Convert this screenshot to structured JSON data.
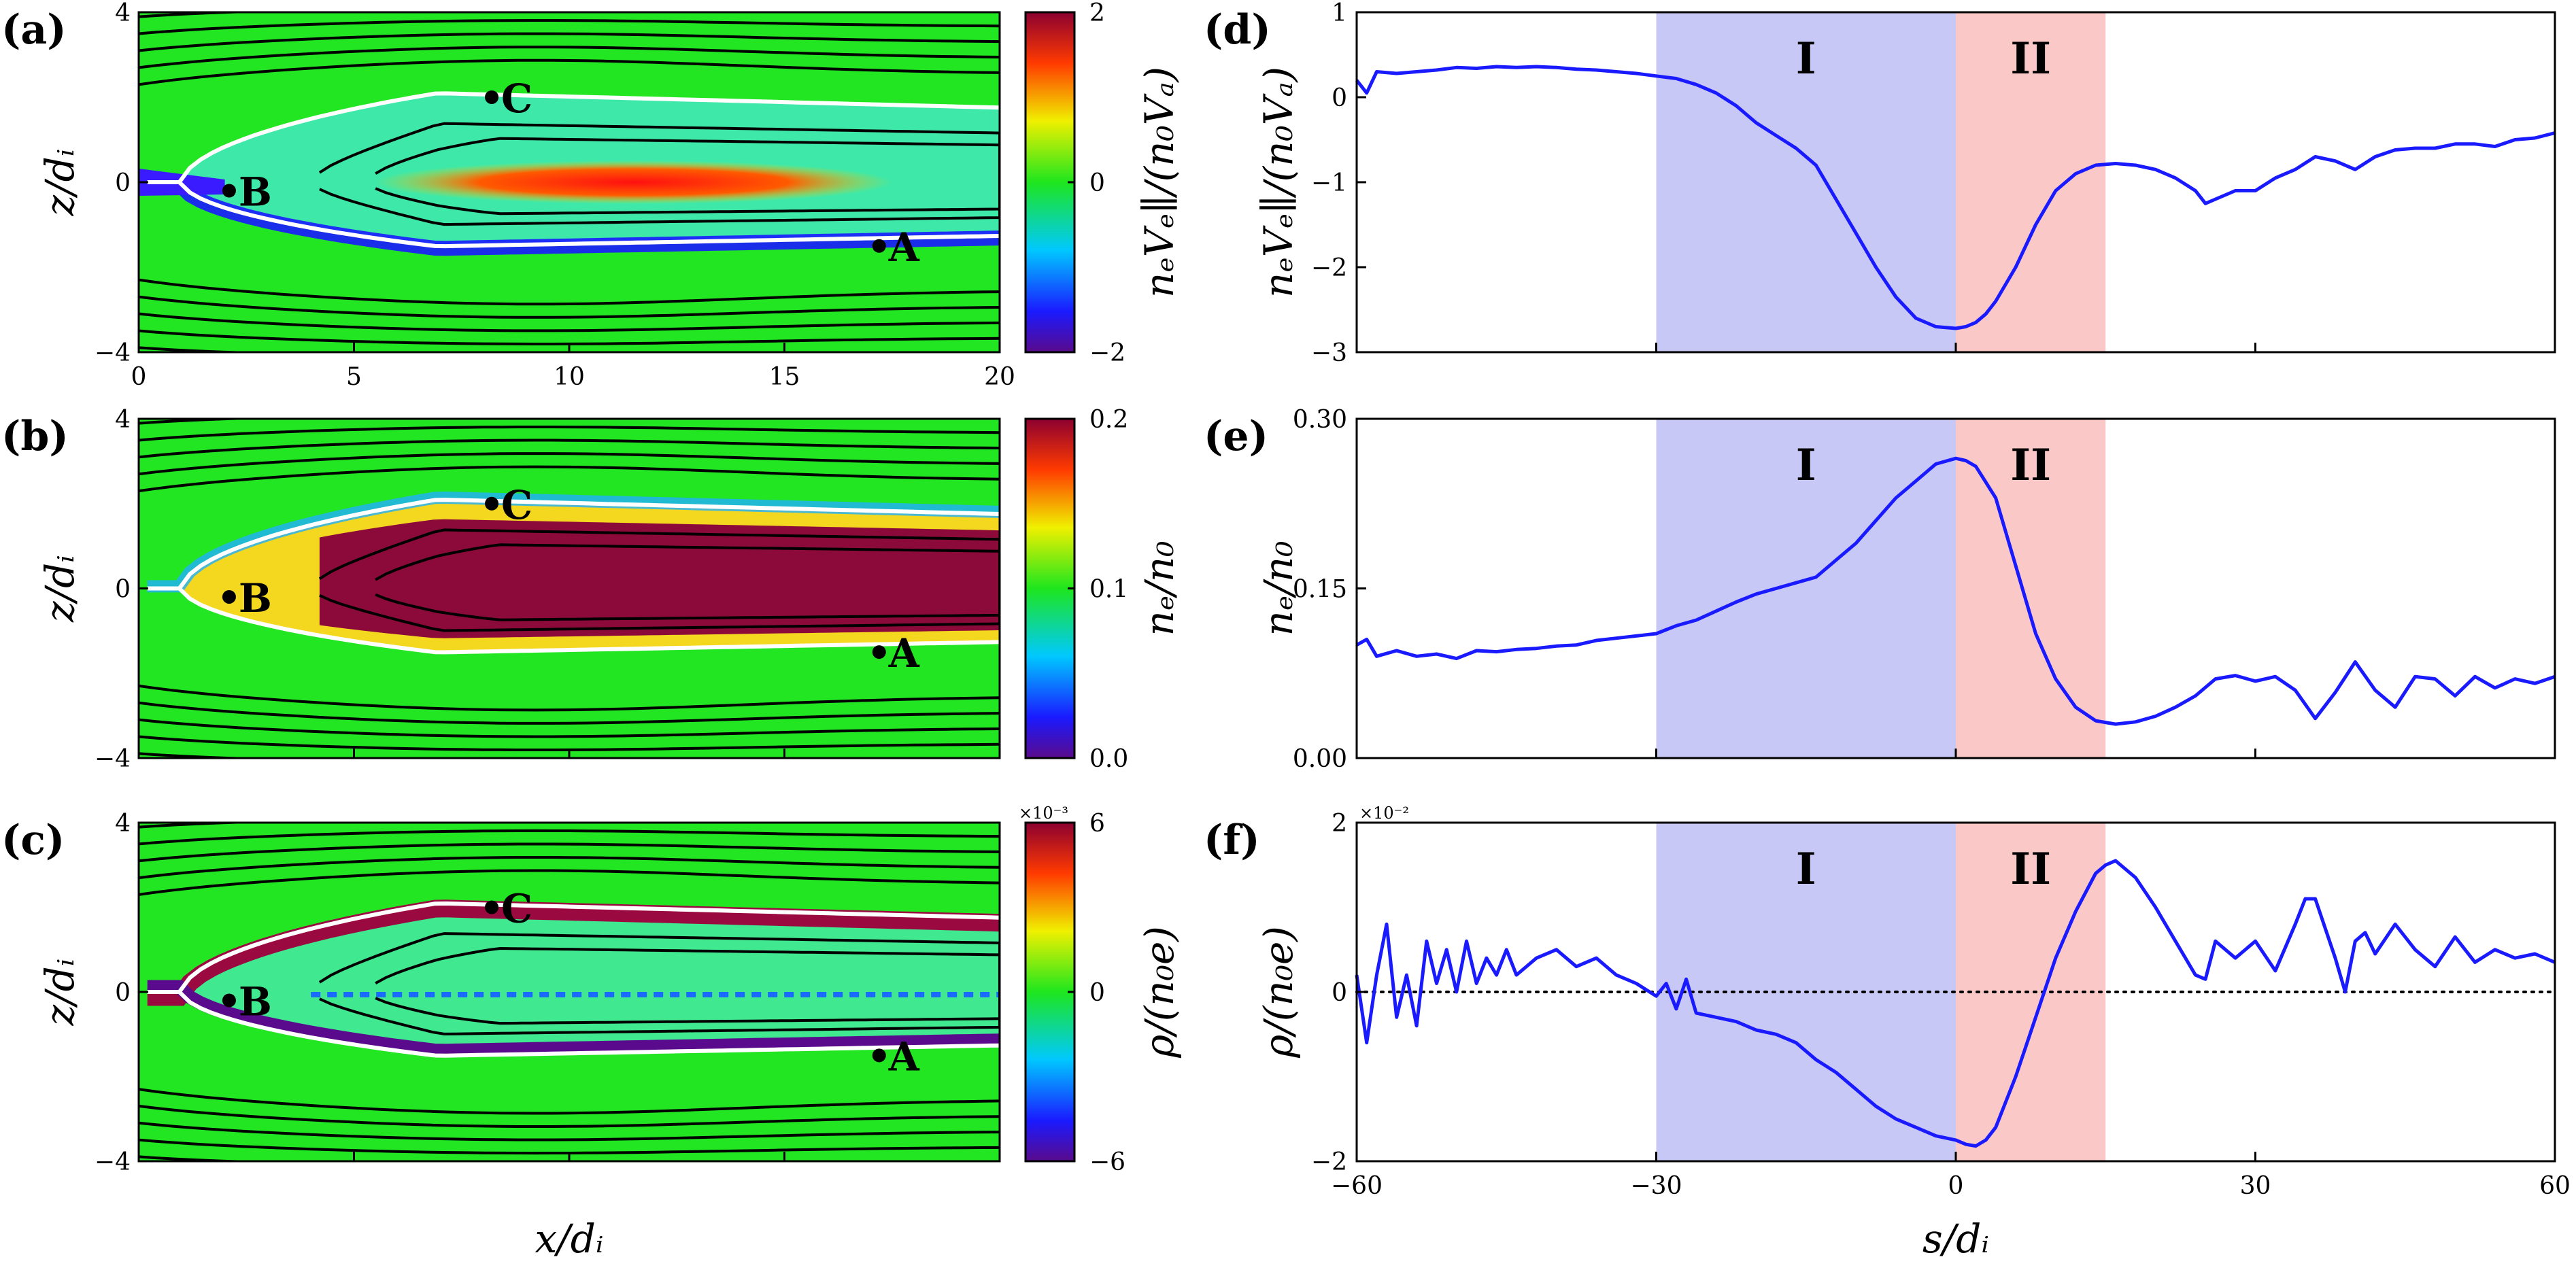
{
  "panel_labels": [
    "(a)",
    "(b)",
    "(c)",
    "(d)",
    "(e)",
    "(f)"
  ],
  "point_labels": [
    "A",
    "B",
    "C"
  ],
  "region_labels": [
    "I",
    "II"
  ],
  "colorbar_labels": [
    "nₑVₑ∥/(n₀Vₐ)",
    "nₑ/n₀",
    "ρ/(n₀e)"
  ],
  "colorbar_exponent": "×10⁻³",
  "line_exponent": "×10⁻²",
  "x_label_left": "x/dᵢ",
  "z_label": "z/dᵢ",
  "s_label": "s/dᵢ",
  "colors": {
    "line": "#1a1aff",
    "region_I": "#c8c8f6",
    "region_II": "#fbc8c8",
    "field_lines": "#000000",
    "separatrix": "#ffffff"
  },
  "chart_data": [
    {
      "type": "heatmap",
      "panel": "(a)",
      "xlabel": "x/dᵢ",
      "ylabel": "z/dᵢ",
      "xlim": [
        0,
        20
      ],
      "ylim": [
        -4,
        4
      ],
      "xticks": [
        "0",
        "5",
        "10",
        "15",
        "20"
      ],
      "yticks": [
        "4",
        "0",
        "−4"
      ],
      "colorbar": {
        "min": -2,
        "max": 2,
        "ticks": [
          "2",
          "0",
          "−2"
        ],
        "label": "nₑVₑ∥/(n₀Vₐ)"
      },
      "points": [
        {
          "name": "A",
          "x": 17.2,
          "z": -1.5
        },
        {
          "name": "B",
          "x": 2.1,
          "z": -0.2
        },
        {
          "name": "C",
          "x": 8.2,
          "z": 2.0
        }
      ]
    },
    {
      "type": "heatmap",
      "panel": "(b)",
      "xlabel": "x/dᵢ",
      "ylabel": "z/dᵢ",
      "xlim": [
        0,
        20
      ],
      "ylim": [
        -4,
        4
      ],
      "yticks": [
        "4",
        "0",
        "−4"
      ],
      "colorbar": {
        "min": 0.0,
        "max": 0.2,
        "ticks": [
          "0.2",
          "0.1",
          "0.0"
        ],
        "label": "nₑ/n₀"
      },
      "points": [
        {
          "name": "A",
          "x": 17.2,
          "z": -1.5
        },
        {
          "name": "B",
          "x": 2.1,
          "z": -0.2
        },
        {
          "name": "C",
          "x": 8.2,
          "z": 2.0
        }
      ]
    },
    {
      "type": "heatmap",
      "panel": "(c)",
      "xlabel": "x/dᵢ",
      "ylabel": "z/dᵢ",
      "xlim": [
        0,
        20
      ],
      "ylim": [
        -4,
        4
      ],
      "yticks": [
        "4",
        "0",
        "−4"
      ],
      "colorbar": {
        "min": -6,
        "max": 6,
        "ticks": [
          "6",
          "0",
          "−6"
        ],
        "exponent": "×10⁻³",
        "label": "ρ/(n₀e)"
      },
      "points": [
        {
          "name": "A",
          "x": 17.2,
          "z": -1.5
        },
        {
          "name": "B",
          "x": 2.1,
          "z": -0.2
        },
        {
          "name": "C",
          "x": 8.2,
          "z": 2.0
        }
      ]
    },
    {
      "type": "line",
      "panel": "(d)",
      "xlabel": "s/dᵢ",
      "ylabel": "nₑVₑ∥/(n₀Vₐ)",
      "xlim": [
        -60,
        60
      ],
      "ylim": [
        -3,
        1
      ],
      "yticks": [
        "1",
        "0",
        "−1",
        "−2",
        "−3"
      ],
      "regions": [
        {
          "label": "I",
          "from": -30,
          "to": 0
        },
        {
          "label": "II",
          "from": 0,
          "to": 15
        }
      ],
      "x": [
        -60,
        -59,
        -58,
        -56,
        -54,
        -52,
        -50,
        -48,
        -46,
        -44,
        -42,
        -40,
        -38,
        -36,
        -34,
        -32,
        -30,
        -28,
        -26,
        -24,
        -22,
        -20,
        -18,
        -16,
        -14,
        -12,
        -10,
        -8,
        -6,
        -4,
        -2,
        0,
        1,
        2,
        3,
        4,
        6,
        8,
        10,
        12,
        14,
        16,
        18,
        20,
        22,
        24,
        25,
        26,
        28,
        30,
        32,
        34,
        36,
        38,
        40,
        42,
        44,
        46,
        48,
        50,
        52,
        54,
        56,
        58,
        60
      ],
      "values": [
        0.2,
        0.05,
        0.3,
        0.28,
        0.3,
        0.32,
        0.35,
        0.34,
        0.36,
        0.35,
        0.36,
        0.35,
        0.33,
        0.32,
        0.3,
        0.28,
        0.25,
        0.22,
        0.15,
        0.05,
        -0.1,
        -0.3,
        -0.45,
        -0.6,
        -0.8,
        -1.2,
        -1.6,
        -2.0,
        -2.35,
        -2.6,
        -2.7,
        -2.72,
        -2.7,
        -2.65,
        -2.55,
        -2.4,
        -2.0,
        -1.5,
        -1.1,
        -0.9,
        -0.8,
        -0.78,
        -0.8,
        -0.85,
        -0.95,
        -1.1,
        -1.25,
        -1.2,
        -1.1,
        -1.1,
        -0.95,
        -0.85,
        -0.7,
        -0.75,
        -0.85,
        -0.7,
        -0.62,
        -0.6,
        -0.6,
        -0.55,
        -0.55,
        -0.58,
        -0.5,
        -0.48,
        -0.42
      ]
    },
    {
      "type": "line",
      "panel": "(e)",
      "xlabel": "s/dᵢ",
      "ylabel": "nₑ/n₀",
      "xlim": [
        -60,
        60
      ],
      "ylim": [
        0,
        0.3
      ],
      "yticks": [
        "0.30",
        "0.15",
        "0.00"
      ],
      "regions": [
        {
          "label": "I",
          "from": -30,
          "to": 0
        },
        {
          "label": "II",
          "from": 0,
          "to": 15
        }
      ],
      "x": [
        -60,
        -59,
        -58,
        -56,
        -54,
        -52,
        -50,
        -48,
        -46,
        -44,
        -42,
        -40,
        -38,
        -36,
        -34,
        -32,
        -30,
        -28,
        -26,
        -24,
        -22,
        -20,
        -18,
        -16,
        -14,
        -12,
        -10,
        -8,
        -6,
        -4,
        -2,
        0,
        1,
        2,
        4,
        6,
        8,
        10,
        12,
        14,
        16,
        18,
        20,
        22,
        24,
        26,
        28,
        30,
        32,
        34,
        36,
        38,
        40,
        42,
        44,
        46,
        48,
        50,
        52,
        54,
        56,
        58,
        60
      ],
      "values": [
        0.1,
        0.105,
        0.09,
        0.095,
        0.09,
        0.092,
        0.088,
        0.095,
        0.094,
        0.096,
        0.097,
        0.099,
        0.1,
        0.104,
        0.106,
        0.108,
        0.11,
        0.117,
        0.122,
        0.13,
        0.138,
        0.145,
        0.15,
        0.155,
        0.16,
        0.175,
        0.19,
        0.21,
        0.23,
        0.245,
        0.26,
        0.265,
        0.263,
        0.258,
        0.23,
        0.17,
        0.11,
        0.07,
        0.045,
        0.033,
        0.03,
        0.032,
        0.037,
        0.045,
        0.055,
        0.07,
        0.073,
        0.068,
        0.072,
        0.06,
        0.035,
        0.058,
        0.085,
        0.06,
        0.045,
        0.072,
        0.07,
        0.055,
        0.072,
        0.062,
        0.07,
        0.066,
        0.072
      ]
    },
    {
      "type": "line",
      "panel": "(f)",
      "xlabel": "s/dᵢ",
      "ylabel": "ρ/(n₀e)",
      "xlim": [
        -60,
        60
      ],
      "ylim": [
        -2,
        2
      ],
      "xticks": [
        "−60",
        "−30",
        "0",
        "30",
        "60"
      ],
      "yticks": [
        "2",
        "0",
        "−2"
      ],
      "exponent": "×10⁻²",
      "reference_line": 0,
      "regions": [
        {
          "label": "I",
          "from": -30,
          "to": 0
        },
        {
          "label": "II",
          "from": 0,
          "to": 15
        }
      ],
      "x": [
        -60,
        -59,
        -58,
        -57,
        -56,
        -55,
        -54,
        -53,
        -52,
        -51,
        -50,
        -49,
        -48,
        -47,
        -46,
        -45,
        -44,
        -42,
        -40,
        -38,
        -36,
        -34,
        -32,
        -30,
        -29,
        -28,
        -27,
        -26,
        -24,
        -22,
        -20,
        -18,
        -16,
        -14,
        -12,
        -10,
        -8,
        -6,
        -4,
        -2,
        0,
        1,
        2,
        3,
        4,
        6,
        8,
        10,
        12,
        14,
        15,
        16,
        18,
        20,
        22,
        24,
        25,
        26,
        28,
        30,
        32,
        34,
        35,
        36,
        38,
        39,
        40,
        41,
        42,
        44,
        46,
        48,
        50,
        52,
        54,
        56,
        58,
        60
      ],
      "values": [
        0.2,
        -0.6,
        0.2,
        0.8,
        -0.3,
        0.2,
        -0.4,
        0.6,
        0.1,
        0.5,
        0.0,
        0.6,
        0.1,
        0.4,
        0.2,
        0.5,
        0.2,
        0.4,
        0.5,
        0.3,
        0.4,
        0.2,
        0.1,
        -0.05,
        0.1,
        -0.2,
        0.15,
        -0.25,
        -0.3,
        -0.35,
        -0.45,
        -0.5,
        -0.6,
        -0.8,
        -0.95,
        -1.15,
        -1.35,
        -1.5,
        -1.6,
        -1.7,
        -1.75,
        -1.8,
        -1.82,
        -1.75,
        -1.6,
        -1.0,
        -0.3,
        0.4,
        0.95,
        1.4,
        1.5,
        1.55,
        1.35,
        1.0,
        0.6,
        0.2,
        0.15,
        0.6,
        0.4,
        0.6,
        0.25,
        0.8,
        1.1,
        1.1,
        0.4,
        0.0,
        0.6,
        0.7,
        0.45,
        0.8,
        0.5,
        0.3,
        0.65,
        0.35,
        0.5,
        0.4,
        0.45,
        0.35
      ]
    }
  ]
}
